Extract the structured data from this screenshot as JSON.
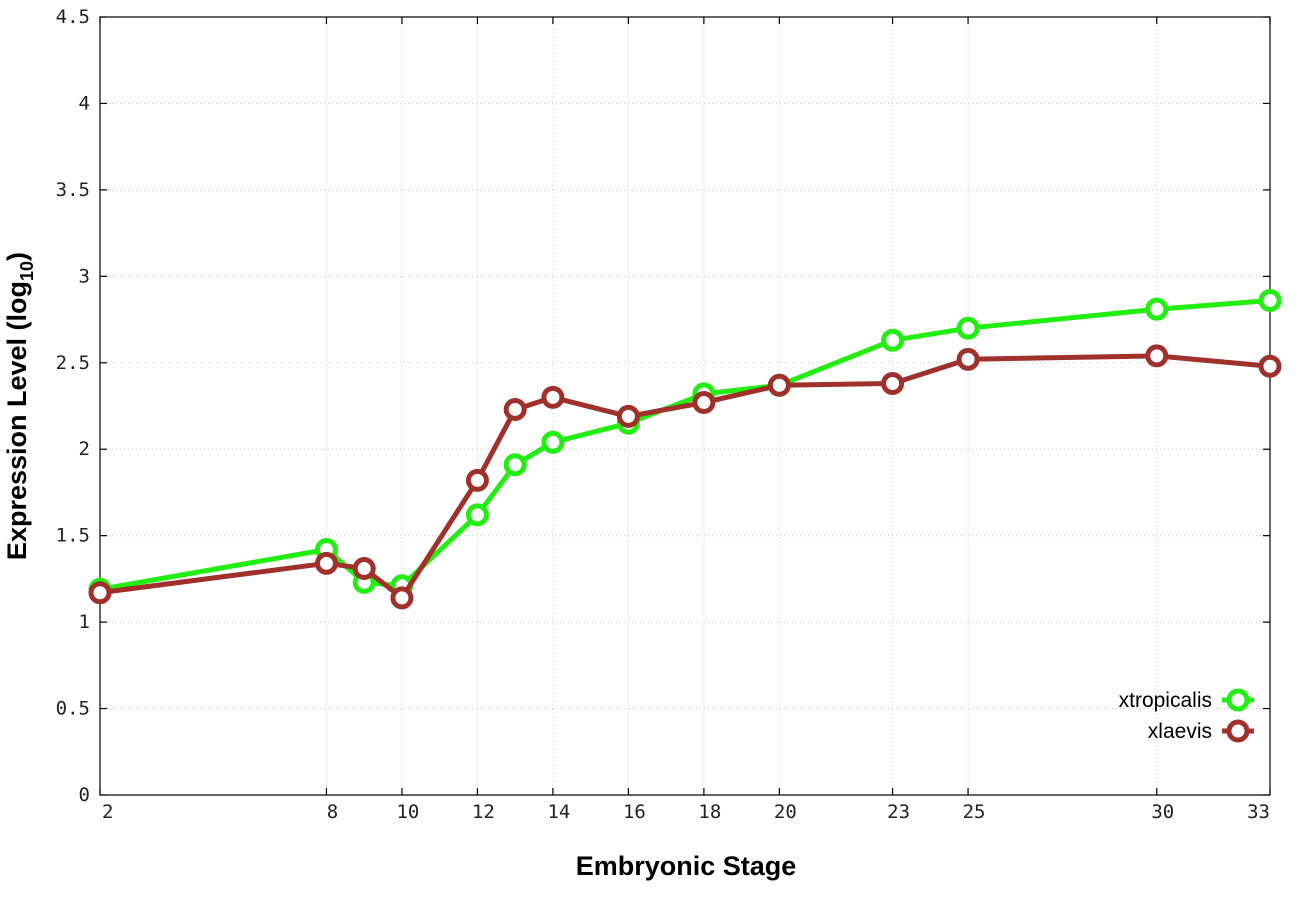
{
  "chart_data": {
    "type": "line",
    "xlabel": "Embryonic Stage",
    "ylabel_main": "Expression Level (log",
    "ylabel_sub": "10",
    "ylabel_close": ")",
    "x_ticks": [
      "2",
      "8",
      "10",
      "12",
      "14",
      "16",
      "18",
      "20",
      "23",
      "25",
      "30",
      "33"
    ],
    "x_tick_positions": [
      2,
      8,
      10,
      12,
      14,
      16,
      18,
      20,
      23,
      25,
      30,
      33
    ],
    "y_ticks": [
      "0",
      "0.5",
      "1",
      "1.5",
      "2",
      "2.5",
      "3",
      "3.5",
      "4",
      "4.5"
    ],
    "y_tick_values": [
      0,
      0.5,
      1,
      1.5,
      2,
      2.5,
      3,
      3.5,
      4,
      4.5
    ],
    "xlim": [
      2,
      33
    ],
    "ylim": [
      0,
      4.5
    ],
    "grid": true,
    "legend_position": "bottom-right",
    "series": [
      {
        "name": "xtropicalis",
        "color": "#22ee11",
        "x": [
          2,
          8,
          9,
          10,
          12,
          13,
          14,
          16,
          18,
          20,
          23,
          25,
          30,
          33
        ],
        "y": [
          1.19,
          1.42,
          1.23,
          1.21,
          1.62,
          1.91,
          2.04,
          2.15,
          2.32,
          2.37,
          2.63,
          2.7,
          2.81,
          2.86
        ]
      },
      {
        "name": "xlaevis",
        "color": "#a0302a",
        "x": [
          2,
          8,
          9,
          10,
          12,
          13,
          14,
          16,
          18,
          20,
          23,
          25,
          30,
          33
        ],
        "y": [
          1.17,
          1.34,
          1.31,
          1.14,
          1.82,
          2.23,
          2.3,
          2.19,
          2.27,
          2.37,
          2.38,
          2.52,
          2.54,
          2.48
        ]
      }
    ]
  }
}
